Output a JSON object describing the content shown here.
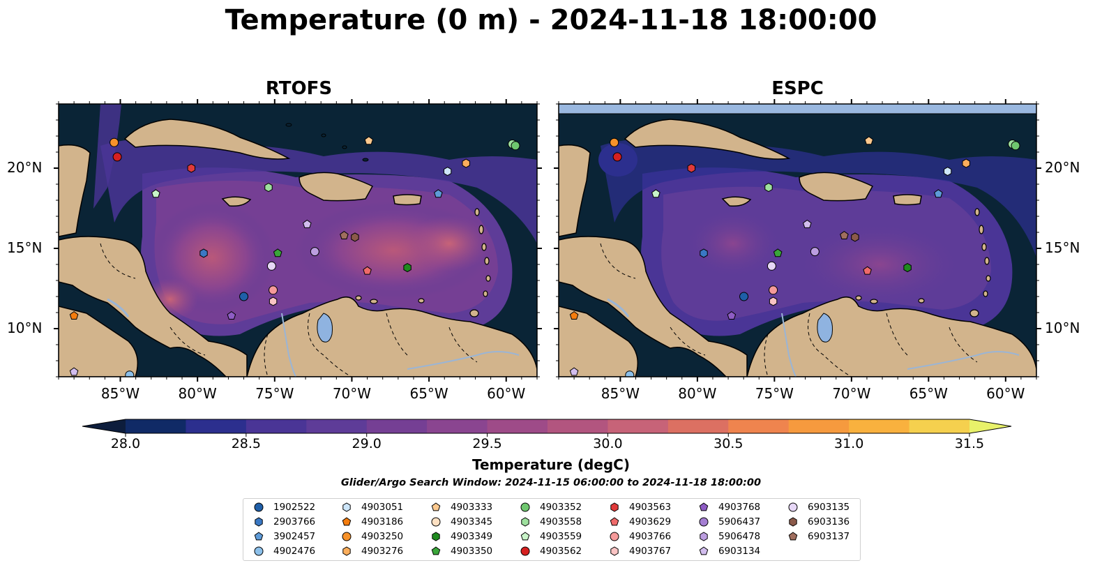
{
  "title": "Temperature (0 m) - 2024-11-18 18:00:00",
  "panels": [
    {
      "id": "rtofs",
      "title": "RTOFS"
    },
    {
      "id": "espc",
      "title": "ESPC"
    }
  ],
  "map": {
    "lon_range": [
      -89,
      -58
    ],
    "lat_range": [
      7,
      24
    ],
    "x_ticks": [
      "85°W",
      "80°W",
      "75°W",
      "70°W",
      "65°W",
      "60°W"
    ],
    "y_ticks": [
      "20°N",
      "15°N",
      "10°N"
    ],
    "colors": {
      "ocean_dark": "#0a2436",
      "land": "#d2b48c",
      "lake": "#8fb3e0",
      "river": "#9ab5d6",
      "warm": "#b9587a",
      "mid": "#6b3e9a"
    }
  },
  "colorbar": {
    "label": "Temperature (degC)",
    "ticks": [
      "28.0",
      "28.5",
      "29.0",
      "29.5",
      "30.0",
      "30.5",
      "31.0",
      "31.5"
    ],
    "colors": [
      "#0d1d3c",
      "#102a66",
      "#2c2f8e",
      "#4a3596",
      "#5e3c98",
      "#753f94",
      "#8a4590",
      "#9e4b88",
      "#b2557f",
      "#c76378",
      "#dc7062",
      "#ef844e",
      "#f69a3e",
      "#f9b13e",
      "#f5d04e",
      "#e8f16a"
    ]
  },
  "search_window": "Glider/Argo Search Window: 2024-11-15 06:00:00 to 2024-11-18 18:00:00",
  "legend": [
    {
      "id": "1902522",
      "shape": "circle",
      "color": "#1f5fa8"
    },
    {
      "id": "2903766",
      "shape": "hexagon",
      "color": "#3a78c4"
    },
    {
      "id": "3902457",
      "shape": "pentagon",
      "color": "#5e9bd8"
    },
    {
      "id": "4902476",
      "shape": "circle",
      "color": "#8cc0ea"
    },
    {
      "id": "4903051",
      "shape": "hexagon",
      "color": "#cde6fa"
    },
    {
      "id": "4903186",
      "shape": "pentagon",
      "color": "#f57d0e"
    },
    {
      "id": "4903250",
      "shape": "circle",
      "color": "#f7922a"
    },
    {
      "id": "4903276",
      "shape": "hexagon",
      "color": "#fbae5c"
    },
    {
      "id": "4903333",
      "shape": "pentagon",
      "color": "#fcc98f"
    },
    {
      "id": "4903345",
      "shape": "circle",
      "color": "#fde0c2"
    },
    {
      "id": "4903349",
      "shape": "hexagon",
      "color": "#1f8a1f"
    },
    {
      "id": "4903350",
      "shape": "pentagon",
      "color": "#3aa63a"
    },
    {
      "id": "4903352",
      "shape": "circle",
      "color": "#6fc76f"
    },
    {
      "id": "4903558",
      "shape": "hexagon",
      "color": "#9ee09e"
    },
    {
      "id": "4903559",
      "shape": "pentagon",
      "color": "#c9f4c9"
    },
    {
      "id": "4903562",
      "shape": "circle",
      "color": "#d62020"
    },
    {
      "id": "4903563",
      "shape": "hexagon",
      "color": "#e03a3a"
    },
    {
      "id": "4903629",
      "shape": "pentagon",
      "color": "#ef6a6a"
    },
    {
      "id": "4903766",
      "shape": "circle",
      "color": "#f59a9a"
    },
    {
      "id": "4903767",
      "shape": "hexagon",
      "color": "#fac4c4"
    },
    {
      "id": "4903768",
      "shape": "pentagon",
      "color": "#8e5cc4"
    },
    {
      "id": "5906437",
      "shape": "circle",
      "color": "#a47ed2"
    },
    {
      "id": "5906478",
      "shape": "hexagon",
      "color": "#bc9ee0"
    },
    {
      "id": "6903134",
      "shape": "pentagon",
      "color": "#d2bdee"
    },
    {
      "id": "6903135",
      "shape": "circle",
      "color": "#e6d7f6"
    },
    {
      "id": "6903136",
      "shape": "hexagon",
      "color": "#8b5a4a"
    },
    {
      "id": "6903137",
      "shape": "pentagon",
      "color": "#a06e5e"
    }
  ],
  "markers": [
    {
      "lon": -85.4,
      "lat": 21.6,
      "shape": "circle",
      "color": "#f7922a"
    },
    {
      "lon": -85.2,
      "lat": 20.7,
      "shape": "circle",
      "color": "#d62020"
    },
    {
      "lon": -80.4,
      "lat": 20.0,
      "shape": "hexagon",
      "color": "#e03a3a"
    },
    {
      "lon": -82.7,
      "lat": 18.4,
      "shape": "pentagon",
      "color": "#c9f4c9"
    },
    {
      "lon": -75.4,
      "lat": 18.8,
      "shape": "hexagon",
      "color": "#9ee09e"
    },
    {
      "lon": -68.9,
      "lat": 21.7,
      "shape": "pentagon",
      "color": "#fcc98f"
    },
    {
      "lon": -62.6,
      "lat": 20.3,
      "shape": "hexagon",
      "color": "#fbae5c"
    },
    {
      "lon": -59.6,
      "lat": 21.5,
      "shape": "circle",
      "color": "#9ee09e"
    },
    {
      "lon": -59.4,
      "lat": 21.4,
      "shape": "circle",
      "color": "#6fc76f"
    },
    {
      "lon": -63.8,
      "lat": 19.8,
      "shape": "hexagon",
      "color": "#cde6fa"
    },
    {
      "lon": -64.4,
      "lat": 18.4,
      "shape": "pentagon",
      "color": "#5e9bd8"
    },
    {
      "lon": -79.6,
      "lat": 14.7,
      "shape": "hexagon",
      "color": "#3a78c4"
    },
    {
      "lon": -74.8,
      "lat": 14.7,
      "shape": "pentagon",
      "color": "#3aa63a"
    },
    {
      "lon": -72.9,
      "lat": 16.5,
      "shape": "pentagon",
      "color": "#d2bdee"
    },
    {
      "lon": -72.4,
      "lat": 14.8,
      "shape": "circle",
      "color": "#bc9ee0"
    },
    {
      "lon": -75.2,
      "lat": 13.9,
      "shape": "circle",
      "color": "#e6d7f6"
    },
    {
      "lon": -70.5,
      "lat": 15.8,
      "shape": "pentagon",
      "color": "#a06e5e"
    },
    {
      "lon": -69.8,
      "lat": 15.7,
      "shape": "hexagon",
      "color": "#8b5a4a"
    },
    {
      "lon": -69.0,
      "lat": 13.6,
      "shape": "pentagon",
      "color": "#ef6a6a"
    },
    {
      "lon": -66.4,
      "lat": 13.8,
      "shape": "hexagon",
      "color": "#1f8a1f"
    },
    {
      "lon": -75.1,
      "lat": 12.4,
      "shape": "circle",
      "color": "#f59a9a"
    },
    {
      "lon": -75.1,
      "lat": 11.7,
      "shape": "hexagon",
      "color": "#fac4c4"
    },
    {
      "lon": -77.0,
      "lat": 12.0,
      "shape": "circle",
      "color": "#1f5fa8"
    },
    {
      "lon": -77.8,
      "lat": 10.8,
      "shape": "pentagon",
      "color": "#8e5cc4"
    },
    {
      "lon": -88.0,
      "lat": 10.8,
      "shape": "pentagon",
      "color": "#f57d0e"
    },
    {
      "lon": -88.0,
      "lat": 7.3,
      "shape": "pentagon",
      "color": "#d2bdee"
    },
    {
      "lon": -84.4,
      "lat": 7.1,
      "shape": "circle",
      "color": "#8cc0ea"
    }
  ]
}
